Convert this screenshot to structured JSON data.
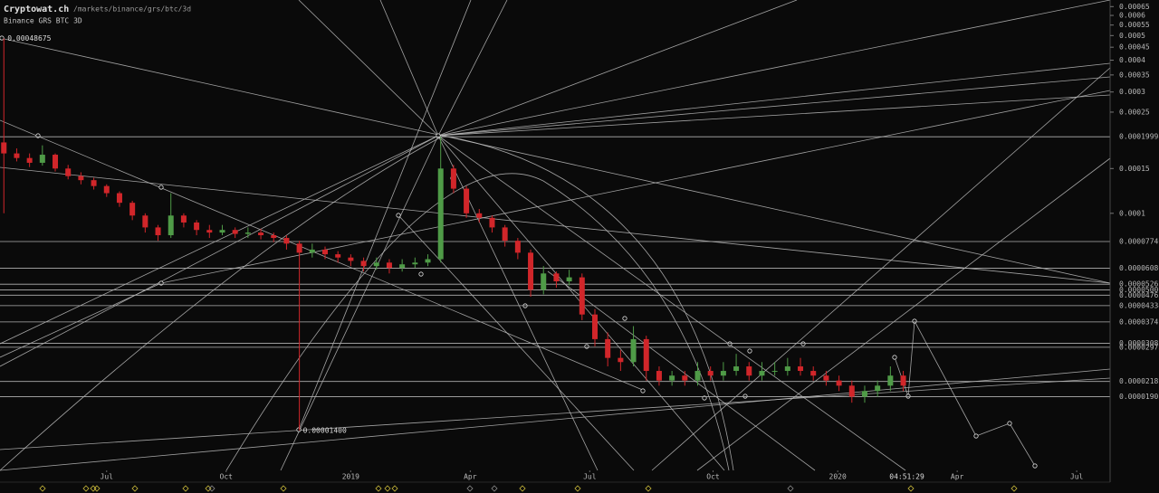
{
  "header": {
    "site": "Cryptowat.ch",
    "path": "/markets/binance/grs/btc/3d",
    "market": "Binance GRS BTC 3D"
  },
  "chart_data": {
    "type": "candlestick",
    "open": [
      0.00019,
      0.000172,
      0.000165,
      0.000158,
      0.00017,
      0.00015,
      0.00014,
      0.000135,
      0.000128,
      0.00012,
      0.00011,
      9.8e-05,
      8.8e-05,
      8.2e-05,
      9.8e-05,
      9.2e-05,
      8.6e-05,
      8.4e-05,
      8.6e-05,
      8.3e-05,
      8.4e-05,
      8.2e-05,
      8e-05,
      7.6e-05,
      7e-05,
      7.2e-05,
      6.9e-05,
      6.7e-05,
      6.5e-05,
      6.2e-05,
      6.4e-05,
      6.1e-05,
      6.3e-05,
      6.4e-05,
      6.6e-05,
      0.00015,
      0.000125,
      0.0001,
      9.6e-05,
      8.8e-05,
      7.8e-05,
      7e-05,
      5e-05,
      5.8e-05,
      5.4e-05,
      5.6e-05,
      4e-05,
      3.2e-05,
      2.7e-05,
      2.6e-05,
      3.2e-05,
      2.4e-05,
      2.2e-05,
      2.3e-05,
      2.2e-05,
      2.4e-05,
      2.3e-05,
      2.4e-05,
      2.5e-05,
      2.3e-05,
      2.4e-05,
      2.4e-05,
      2.5e-05,
      2.4e-05,
      2.3e-05,
      2.2e-05,
      2.1e-05,
      1.9e-05,
      2e-05,
      2.1e-05,
      2.3e-05
    ],
    "high": [
      0.00048675,
      0.00018,
      0.000172,
      0.000185,
      0.000172,
      0.000155,
      0.000145,
      0.000138,
      0.00013,
      0.000122,
      0.000112,
      0.0001,
      9e-05,
      0.00012,
      0.0001,
      9.4e-05,
      9e-05,
      9e-05,
      8.8e-05,
      8.8e-05,
      8.7e-05,
      8.4e-05,
      8.2e-05,
      7.8e-05,
      7.6e-05,
      7.4e-05,
      7.1e-05,
      6.9e-05,
      6.7e-05,
      6.7e-05,
      6.6e-05,
      6.6e-05,
      6.7e-05,
      6.9e-05,
      0.0002,
      0.000155,
      0.000128,
      0.000104,
      9.8e-05,
      9e-05,
      8e-05,
      7.2e-05,
      6.2e-05,
      5.9e-05,
      6e-05,
      5.8e-05,
      4.2e-05,
      3.4e-05,
      2.9e-05,
      3.6e-05,
      3.3e-05,
      2.5e-05,
      2.4e-05,
      2.4e-05,
      2.6e-05,
      2.5e-05,
      2.6e-05,
      2.8e-05,
      2.6e-05,
      2.6e-05,
      2.6e-05,
      2.7e-05,
      2.7e-05,
      2.5e-05,
      2.4e-05,
      2.3e-05,
      2.2e-05,
      2.1e-05,
      2.2e-05,
      2.5e-05,
      2.4e-05
    ],
    "low": [
      0.0001,
      0.00016,
      0.000152,
      0.000154,
      0.000146,
      0.000136,
      0.00013,
      0.000124,
      0.000116,
      0.000106,
      9.4e-05,
      8.4e-05,
      7.8e-05,
      8e-05,
      8.8e-05,
      8.2e-05,
      8e-05,
      8.2e-05,
      8e-05,
      8e-05,
      7.9e-05,
      7.7e-05,
      7.2e-05,
      1.4e-05,
      6.7e-05,
      6.6e-05,
      6.4e-05,
      6.2e-05,
      5.9e-05,
      6e-05,
      5.8e-05,
      5.9e-05,
      6.1e-05,
      6.2e-05,
      6.4e-05,
      0.00012,
      9.6e-05,
      9.2e-05,
      8.4e-05,
      7.4e-05,
      6.6e-05,
      4.7e-05,
      4.8e-05,
      5.1e-05,
      5.2e-05,
      3.8e-05,
      3e-05,
      2.5e-05,
      2.4e-05,
      2.5e-05,
      2.2e-05,
      2.1e-05,
      2.1e-05,
      2.1e-05,
      2.1e-05,
      2.2e-05,
      2.2e-05,
      2.3e-05,
      2.2e-05,
      2.2e-05,
      2.3e-05,
      2.3e-05,
      2.3e-05,
      2.2e-05,
      2.1e-05,
      2e-05,
      1.8e-05,
      1.8e-05,
      1.9e-05,
      2e-05,
      2e-05
    ],
    "close": [
      0.000172,
      0.000165,
      0.000158,
      0.00017,
      0.00015,
      0.00014,
      0.000135,
      0.000128,
      0.00012,
      0.00011,
      9.8e-05,
      8.8e-05,
      8.2e-05,
      9.8e-05,
      9.2e-05,
      8.6e-05,
      8.4e-05,
      8.6e-05,
      8.3e-05,
      8.4e-05,
      8.2e-05,
      8e-05,
      7.6e-05,
      7e-05,
      7.2e-05,
      6.9e-05,
      6.7e-05,
      6.5e-05,
      6.2e-05,
      6.4e-05,
      6.1e-05,
      6.3e-05,
      6.4e-05,
      6.6e-05,
      0.00015,
      0.000125,
      0.0001,
      9.6e-05,
      8.8e-05,
      7.8e-05,
      7e-05,
      5e-05,
      5.8e-05,
      5.4e-05,
      5.6e-05,
      4e-05,
      3.2e-05,
      2.7e-05,
      2.6e-05,
      3.2e-05,
      2.4e-05,
      2.2e-05,
      2.3e-05,
      2.2e-05,
      2.4e-05,
      2.3e-05,
      2.4e-05,
      2.5e-05,
      2.3e-05,
      2.4e-05,
      2.4e-05,
      2.5e-05,
      2.4e-05,
      2.3e-05,
      2.2e-05,
      2.1e-05,
      1.9e-05,
      2e-05,
      2.1e-05,
      2.3e-05,
      2.1e-05
    ],
    "colors": {
      "up": "#4f9b47",
      "down": "#d1262a"
    },
    "log_scale": true,
    "ylim": [
      9.75e-06,
      0.00069
    ],
    "yticks": [
      0.00065,
      {
        "value": 0.0006,
        "label": "0.0006"
      },
      0.00055,
      {
        "value": 0.0005,
        "label": "0.0005"
      },
      0.00045,
      {
        "value": 0.0004,
        "label": "0.0004"
      },
      0.00035,
      {
        "value": 0.0003,
        "label": "0.0003"
      },
      0.00025,
      0.00015,
      0.0001
    ],
    "price_lines": [
      0.00019998,
      7.746e-05,
      {
        "value": 6.08e-05,
        "label": "0.00006080"
      },
      5.262e-05,
      {
        "value": 5e-05,
        "label": "0.00005000"
      },
      4.765e-05,
      4.334e-05,
      3.741e-05,
      3.083e-05,
      2.973e-05,
      2.181e-05,
      1.902e-05
    ],
    "xlim": [
      -0.3,
      86.1
    ],
    "xticks": [
      {
        "value": 8.0,
        "label": "Jul"
      },
      {
        "value": 17.3,
        "label": "Oct"
      },
      {
        "value": 27.0,
        "label": "2019"
      },
      {
        "value": 36.3,
        "label": "Apr"
      },
      {
        "value": 45.6,
        "label": "Jul"
      },
      {
        "value": 55.2,
        "label": "Oct"
      },
      {
        "value": 64.9,
        "label": "2020"
      },
      {
        "value": 74.2,
        "label": "Apr"
      },
      {
        "value": 83.5,
        "label": "Jul"
      }
    ],
    "annotations": [
      "0.00048675",
      "0.00001400"
    ],
    "countdown": "04:51:29"
  }
}
